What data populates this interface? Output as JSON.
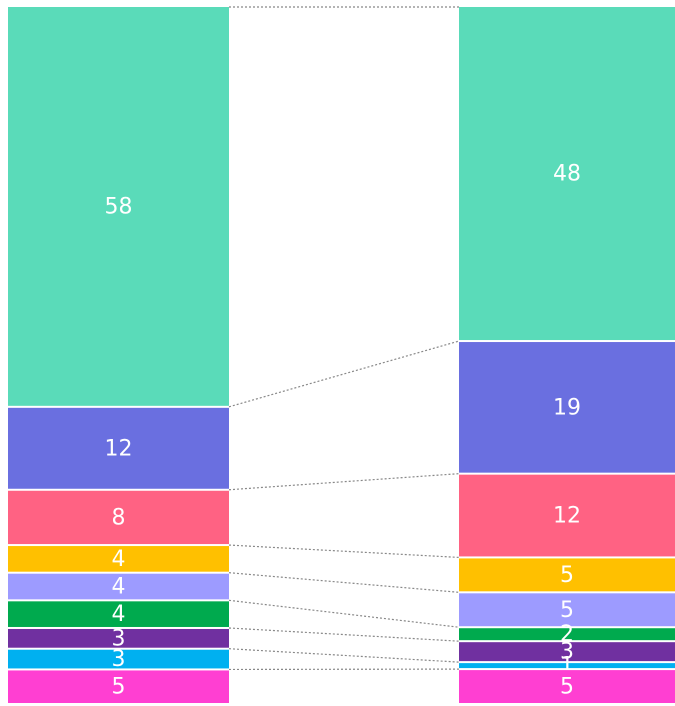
{
  "chart_data": {
    "type": "stacked_bar",
    "categories": [
      null,
      null
    ],
    "series": [
      {
        "color": "#5adbb9",
        "values": [
          58,
          48
        ]
      },
      {
        "color": "#6a6fe0",
        "values": [
          12,
          19
        ]
      },
      {
        "color": "#ff6283",
        "values": [
          8,
          12
        ]
      },
      {
        "color": "#ffc000",
        "values": [
          4,
          5
        ]
      },
      {
        "color": "#9d9bff",
        "values": [
          4,
          5
        ]
      },
      {
        "color": "#00aa4e",
        "values": [
          4,
          2
        ]
      },
      {
        "color": "#7030a0",
        "values": [
          3,
          3
        ]
      },
      {
        "color": "#00b0f0",
        "values": [
          3,
          1
        ]
      },
      {
        "color": "#ff3fd2",
        "values": [
          5,
          5
        ]
      }
    ]
  }
}
